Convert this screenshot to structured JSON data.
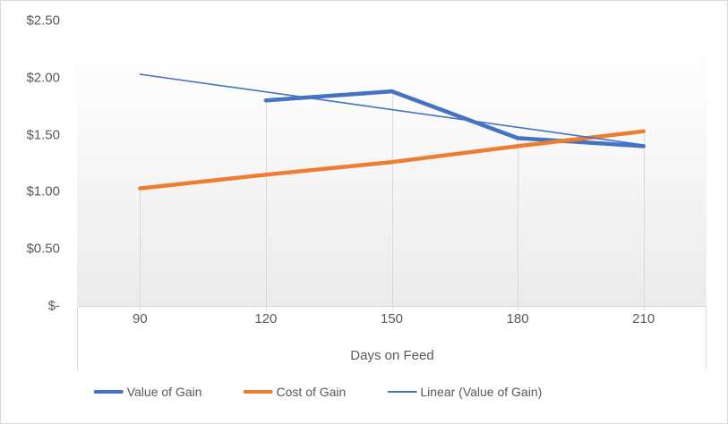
{
  "chart_data": {
    "type": "line",
    "title": "",
    "xlabel": "Days on Feed",
    "ylabel": "",
    "categories": [
      90,
      120,
      150,
      180,
      210
    ],
    "x_tick_labels": [
      "90",
      "120",
      "150",
      "180",
      "210"
    ],
    "y_ticks": [
      {
        "label": "$2.50",
        "value": 2.5
      },
      {
        "label": "$2.00",
        "value": 2.0
      },
      {
        "label": "$1.50",
        "value": 1.5
      },
      {
        "label": "$1.00",
        "value": 1.0
      },
      {
        "label": "$0.50",
        "value": 0.5
      },
      {
        "label": "$-",
        "value": 0.0
      }
    ],
    "ylim": [
      0,
      2.5
    ],
    "grid": false,
    "drop_lines": true,
    "legend_position": "bottom",
    "series": [
      {
        "name": "Value of Gain",
        "color": "#4472C4",
        "width": 4.5,
        "x": [
          120,
          150,
          180,
          210
        ],
        "values": [
          1.8,
          1.88,
          1.47,
          1.4
        ]
      },
      {
        "name": "Cost of Gain",
        "color": "#ED7D31",
        "width": 4.5,
        "x": [
          90,
          120,
          150,
          180,
          210
        ],
        "values": [
          1.03,
          1.15,
          1.26,
          1.4,
          1.53
        ]
      },
      {
        "name": "Linear (Value of Gain)",
        "color": "#4472C4",
        "width": 1.6,
        "x": [
          90,
          210
        ],
        "values": [
          2.03,
          1.41
        ],
        "is_trendline": true
      }
    ],
    "colors": {
      "axis_text": "#595959",
      "grid": "#d9d9d9",
      "plot_bg_top": "#ffffff",
      "plot_bg_bottom": "#ebebeb",
      "chart_border": "#d9d9d9"
    }
  }
}
